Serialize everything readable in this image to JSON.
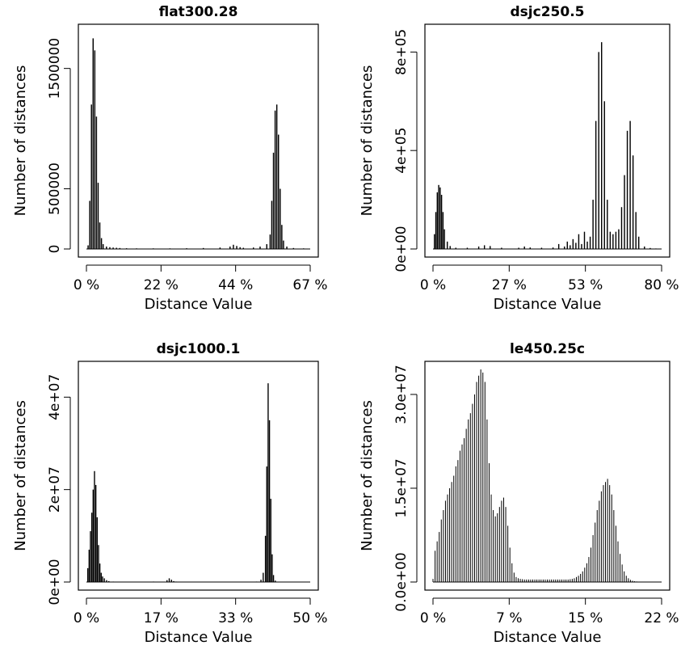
{
  "chart_data": [
    {
      "type": "bar",
      "title": "flat300.28",
      "xlabel": "Distance Value",
      "ylabel": "Number of distances",
      "x_ticks": [
        "0 %",
        "22 %",
        "44 %",
        "67 %"
      ],
      "y_ticks": [
        "0",
        "500000",
        "1500000"
      ],
      "y_tick_values": [
        0,
        500000,
        1500000
      ],
      "xlim": [
        0,
        67
      ],
      "ylim": [
        0,
        1800000
      ],
      "grid": false,
      "bar_width": 0.35,
      "x": [
        0.5,
        1,
        1.5,
        2,
        2.5,
        3,
        3.5,
        4,
        4.5,
        5,
        6,
        7,
        8,
        9,
        10,
        12,
        15,
        20,
        25,
        30,
        35,
        40,
        43,
        44,
        45,
        46,
        47,
        50,
        52,
        54,
        55,
        55.5,
        56,
        56.5,
        57,
        57.5,
        58,
        58.5,
        59,
        60,
        62,
        65
      ],
      "values": [
        30000,
        400000,
        1200000,
        1750000,
        1650000,
        1100000,
        550000,
        220000,
        90000,
        40000,
        20000,
        15000,
        12000,
        10000,
        8000,
        6000,
        5000,
        5000,
        5000,
        6000,
        8000,
        12000,
        20000,
        35000,
        25000,
        15000,
        10000,
        12000,
        20000,
        40000,
        120000,
        400000,
        800000,
        1150000,
        1200000,
        950000,
        500000,
        200000,
        70000,
        20000,
        8000,
        5000
      ]
    },
    {
      "type": "bar",
      "title": "dsjc250.5",
      "xlabel": "Distance Value",
      "ylabel": "Number of distances",
      "x_ticks": [
        "0 %",
        "27 %",
        "53 %",
        "80 %"
      ],
      "y_ticks": [
        "0e+00",
        "4e+05",
        "8e+05"
      ],
      "y_tick_values": [
        0,
        400000,
        800000
      ],
      "xlim": [
        0,
        80
      ],
      "ylim": [
        0,
        880000
      ],
      "grid": false,
      "bar_width": 0.4,
      "x": [
        0.5,
        1,
        1.5,
        2,
        2.5,
        3,
        3.5,
        4,
        5,
        6,
        8,
        12,
        16,
        18,
        20,
        24,
        30,
        32,
        34,
        38,
        42,
        44,
        46,
        47,
        48,
        49,
        50,
        51,
        52,
        53,
        54,
        55,
        56,
        57,
        58,
        59,
        60,
        61,
        62,
        63,
        64,
        65,
        66,
        67,
        68,
        69,
        70,
        71,
        72,
        74,
        76,
        78
      ],
      "values": [
        60000,
        150000,
        230000,
        260000,
        250000,
        220000,
        150000,
        80000,
        30000,
        12000,
        5000,
        5000,
        10000,
        15000,
        12000,
        5000,
        5000,
        10000,
        6000,
        5000,
        6000,
        20000,
        10000,
        30000,
        15000,
        40000,
        25000,
        60000,
        20000,
        70000,
        30000,
        50000,
        200000,
        520000,
        800000,
        840000,
        600000,
        200000,
        70000,
        60000,
        70000,
        80000,
        170000,
        300000,
        480000,
        520000,
        380000,
        150000,
        50000,
        10000,
        4000,
        2000
      ]
    },
    {
      "type": "bar",
      "title": "dsjc1000.1",
      "xlabel": "Distance Value",
      "ylabel": "Number of distances",
      "x_ticks": [
        "0 %",
        "17 %",
        "33 %",
        "50 %"
      ],
      "y_ticks": [
        "0e+00",
        "2e+07",
        "4e+07"
      ],
      "y_tick_values": [
        0,
        20000000,
        40000000
      ],
      "xlim": [
        0,
        50
      ],
      "ylim": [
        0,
        46000000
      ],
      "grid": false,
      "bar_width": 0.25,
      "x": [
        0.3,
        0.6,
        0.9,
        1.2,
        1.5,
        1.8,
        2.1,
        2.4,
        2.7,
        3.0,
        3.3,
        3.6,
        4.0,
        4.5,
        5,
        6,
        8,
        10,
        12,
        15,
        18,
        18.5,
        19,
        19.5,
        20,
        22,
        25,
        28,
        30,
        33,
        36,
        38,
        39,
        39.5,
        40,
        40.3,
        40.6,
        40.9,
        41.2,
        41.5,
        41.8,
        42.2,
        43,
        45,
        48
      ],
      "values": [
        3000000,
        7000000,
        11000000,
        15000000,
        20000000,
        24000000,
        21000000,
        14000000,
        8000000,
        4000000,
        2000000,
        1200000,
        800000,
        400000,
        200000,
        100000,
        50000,
        50000,
        50000,
        100000,
        400000,
        800000,
        500000,
        200000,
        100000,
        50000,
        50000,
        50000,
        50000,
        50000,
        50000,
        100000,
        500000,
        2000000,
        10000000,
        25000000,
        43000000,
        35000000,
        18000000,
        6000000,
        1500000,
        300000,
        50000,
        30000,
        20000
      ]
    },
    {
      "type": "bar",
      "title": "le450.25c",
      "xlabel": "Distance Value",
      "ylabel": "Number of distances",
      "x_ticks": [
        "0 %",
        "7 %",
        "15 %",
        "22 %"
      ],
      "y_ticks": [
        "0.0e+00",
        "1.5e+07",
        "3.0e+07"
      ],
      "y_tick_values": [
        0,
        15000000,
        30000000
      ],
      "xlim": [
        0,
        22
      ],
      "ylim": [
        0,
        34000000
      ],
      "grid": false,
      "bar_width": 0.05,
      "x": [
        0.0,
        0.2,
        0.4,
        0.6,
        0.8,
        1.0,
        1.2,
        1.4,
        1.6,
        1.8,
        2.0,
        2.2,
        2.4,
        2.6,
        2.8,
        3.0,
        3.2,
        3.4,
        3.6,
        3.8,
        4.0,
        4.2,
        4.4,
        4.6,
        4.8,
        5.0,
        5.2,
        5.4,
        5.6,
        5.8,
        6.0,
        6.2,
        6.4,
        6.6,
        6.8,
        7.0,
        7.2,
        7.4,
        7.6,
        7.8,
        8.0,
        8.2,
        8.4,
        8.6,
        8.8,
        9.0,
        9.2,
        9.4,
        9.6,
        9.8,
        10.0,
        10.2,
        10.4,
        10.6,
        10.8,
        11.0,
        11.2,
        11.4,
        11.6,
        11.8,
        12.0,
        12.2,
        12.4,
        12.6,
        12.8,
        13.0,
        13.2,
        13.4,
        13.6,
        13.8,
        14.0,
        14.2,
        14.4,
        14.6,
        14.8,
        15.0,
        15.2,
        15.4,
        15.6,
        15.8,
        16.0,
        16.2,
        16.4,
        16.6,
        16.8,
        17.0,
        17.2,
        17.4,
        17.6,
        17.8,
        18.0,
        18.2,
        18.4,
        18.6,
        18.8,
        19.0,
        19.2,
        19.4,
        19.6,
        19.8,
        20.0,
        20.2,
        20.4,
        20.6,
        20.8,
        21.0,
        21.2,
        21.4,
        21.6,
        21.8
      ],
      "values": [
        500000,
        5000000,
        6500000,
        8000000,
        10000000,
        11500000,
        13000000,
        14000000,
        15000000,
        16000000,
        17000000,
        18500000,
        19500000,
        21000000,
        22000000,
        23000000,
        24500000,
        26000000,
        27000000,
        28500000,
        30000000,
        32000000,
        33000000,
        34000000,
        33500000,
        32000000,
        26000000,
        19000000,
        14000000,
        11500000,
        10500000,
        11000000,
        12000000,
        13000000,
        13500000,
        12000000,
        9000000,
        5500000,
        3000000,
        1500000,
        800000,
        600000,
        500000,
        450000,
        400000,
        400000,
        400000,
        400000,
        400000,
        400000,
        400000,
        400000,
        400000,
        400000,
        400000,
        400000,
        400000,
        400000,
        400000,
        400000,
        400000,
        400000,
        400000,
        400000,
        400000,
        400000,
        450000,
        500000,
        600000,
        800000,
        1000000,
        1300000,
        1700000,
        2300000,
        3000000,
        4000000,
        5500000,
        7500000,
        9500000,
        11500000,
        13000000,
        14500000,
        15500000,
        16000000,
        16500000,
        15500000,
        14000000,
        11500000,
        9000000,
        6500000,
        4500000,
        2800000,
        1700000,
        1000000,
        600000,
        350000,
        200000,
        120000,
        80000,
        50000,
        30000,
        20000,
        15000,
        10000,
        8000,
        6000,
        5000,
        4000,
        3000,
        2000
      ]
    }
  ]
}
